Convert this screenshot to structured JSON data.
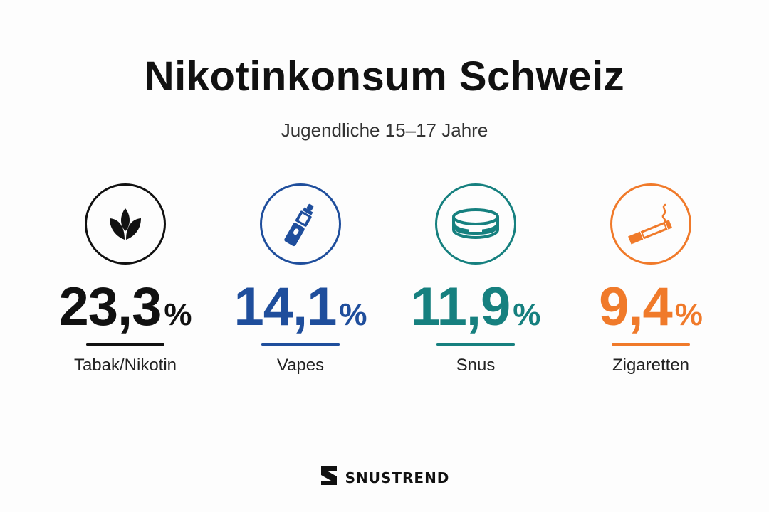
{
  "header": {
    "title": "Nikotinkonsum Schweiz",
    "subtitle": "Jugendliche 15–17 Jahre"
  },
  "stats": [
    {
      "value": "23,3",
      "unit": "%",
      "label": "Tabak/Nikotin",
      "color": "#111111",
      "icon": "leaf-icon"
    },
    {
      "value": "14,1",
      "unit": "%",
      "label": "Vapes",
      "color": "#1f4e9c",
      "icon": "vape-icon"
    },
    {
      "value": "11,9",
      "unit": "%",
      "label": "Snus",
      "color": "#16807f",
      "icon": "snus-can-icon"
    },
    {
      "value": "9,4",
      "unit": "%",
      "label": "Zigaretten",
      "color": "#f07a2a",
      "icon": "cigarette-icon"
    }
  ],
  "chart_data": {
    "type": "table",
    "title": "Nikotinkonsum Schweiz",
    "subtitle": "Jugendliche 15–17 Jahre",
    "categories": [
      "Tabak/Nikotin",
      "Vapes",
      "Snus",
      "Zigaretten"
    ],
    "values": [
      23.3,
      14.1,
      11.9,
      9.4
    ],
    "unit": "%"
  },
  "brand": {
    "name": "SNUSTREND",
    "icon": "snustrend-logo-icon"
  }
}
